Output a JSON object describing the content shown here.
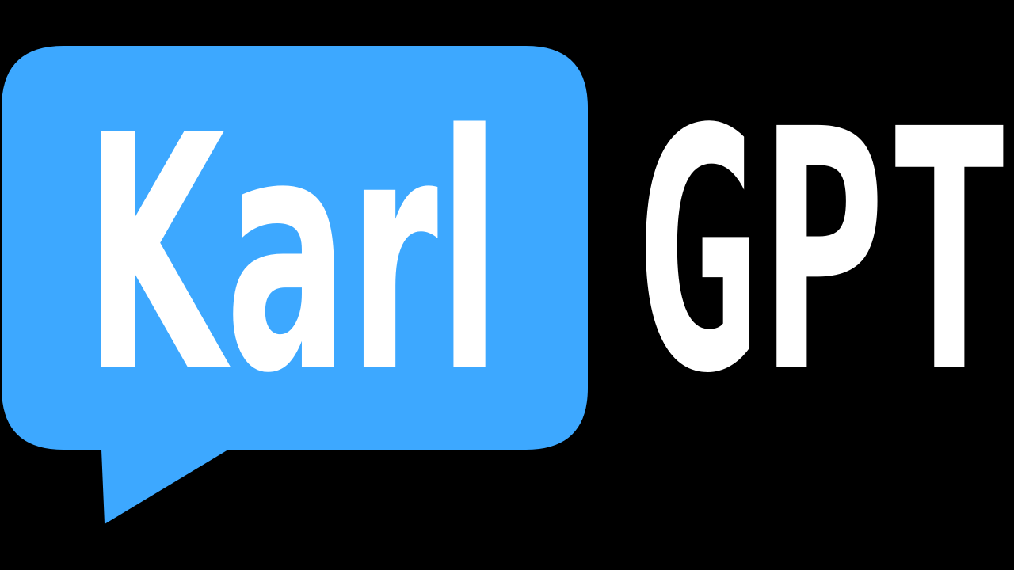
{
  "logo": {
    "primary_word": "Karl",
    "secondary_word": "GPT",
    "bubble_color": "#3da8ff",
    "text_color": "#ffffff",
    "background_color": "#000000"
  }
}
